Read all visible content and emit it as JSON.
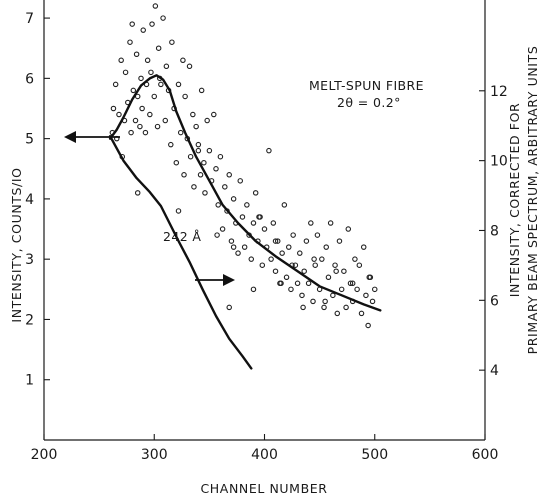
{
  "chart_data": {
    "type": "scatter",
    "title": "",
    "xlabel": "CHANNEL NUMBER",
    "ylabel": "INTENSITY, COUNTS/IO",
    "y2label_line1": "INTENSITY, CORRECTED FOR",
    "y2label_line2": "PRIMARY BEAM SPECTRUM, ARBITRARY UNITS",
    "xlim": [
      200,
      600
    ],
    "ylim": [
      0,
      7.3
    ],
    "y2lim": [
      2,
      14.6
    ],
    "x_ticks": [
      200,
      300,
      400,
      500,
      600
    ],
    "x_tick_labels": [
      "200",
      "300",
      "400",
      "500",
      "600"
    ],
    "y_ticks": [
      1,
      2,
      3,
      4,
      5,
      6,
      7
    ],
    "y_tick_labels": [
      "1",
      "2",
      "3",
      "4",
      "5",
      "6",
      "7"
    ],
    "y2_ticks": [
      4,
      6,
      8,
      10,
      12
    ],
    "y2_tick_labels": [
      "4",
      "6",
      "8",
      "10",
      "12"
    ],
    "grid": false,
    "legend": "none",
    "annotations": {
      "sample_line1": "MELT-SPUN FIBRE",
      "sample_line2": "2θ = 0.2°",
      "spacing_label": "242 Å"
    },
    "series": [
      {
        "kind": "scatter",
        "axis": "left",
        "x": [
          262,
          263,
          265,
          266,
          268,
          270,
          271,
          273,
          274,
          276,
          278,
          279,
          280,
          281,
          283,
          284,
          285,
          287,
          288,
          289,
          290,
          292,
          293,
          294,
          296,
          297,
          298,
          300,
          301,
          303,
          304,
          306,
          308,
          310,
          311,
          313,
          315,
          316,
          318,
          320,
          322,
          324,
          326,
          327,
          328,
          330,
          332,
          333,
          335,
          336,
          338,
          340,
          342,
          343,
          345,
          346,
          348,
          350,
          352,
          354,
          356,
          358,
          360,
          362,
          364,
          366,
          368,
          370,
          372,
          374,
          376,
          378,
          380,
          382,
          384,
          386,
          388,
          390,
          392,
          394,
          396,
          398,
          400,
          402,
          404,
          406,
          408,
          410,
          412,
          414,
          416,
          418,
          420,
          422,
          424,
          426,
          428,
          430,
          432,
          434,
          436,
          438,
          440,
          442,
          444,
          446,
          448,
          450,
          452,
          454,
          456,
          458,
          460,
          462,
          464,
          466,
          468,
          470,
          472,
          474,
          476,
          478,
          480,
          482,
          484,
          486,
          488,
          490,
          492,
          494,
          496,
          498,
          500,
          285,
          305,
          322,
          340,
          357,
          372,
          395,
          410,
          425,
          445,
          465,
          480,
          495,
          368,
          390,
          415,
          435,
          455
        ],
        "y": [
          5.1,
          5.5,
          5.9,
          5.0,
          5.4,
          6.3,
          4.7,
          5.3,
          6.1,
          5.6,
          6.6,
          5.1,
          6.9,
          5.8,
          5.3,
          6.4,
          5.7,
          5.2,
          6.0,
          5.5,
          6.8,
          5.1,
          5.9,
          6.3,
          5.4,
          6.1,
          6.9,
          5.7,
          7.2,
          5.2,
          6.5,
          5.9,
          7.0,
          5.3,
          6.2,
          5.8,
          4.9,
          6.6,
          5.5,
          4.6,
          5.9,
          5.1,
          6.3,
          4.4,
          5.7,
          5.0,
          6.2,
          4.7,
          5.4,
          4.2,
          5.2,
          4.9,
          4.4,
          5.8,
          4.6,
          4.1,
          5.3,
          4.8,
          4.3,
          5.4,
          4.5,
          3.9,
          4.7,
          3.5,
          4.2,
          3.8,
          4.4,
          3.3,
          4.0,
          3.6,
          3.1,
          4.3,
          3.7,
          3.2,
          3.9,
          3.4,
          3.0,
          3.6,
          4.1,
          3.3,
          3.7,
          2.9,
          3.5,
          3.2,
          4.8,
          3.0,
          3.6,
          2.8,
          3.3,
          2.6,
          3.1,
          3.9,
          2.7,
          3.2,
          2.5,
          3.4,
          2.9,
          2.6,
          3.1,
          2.4,
          2.8,
          3.3,
          2.6,
          3.6,
          2.3,
          2.9,
          3.4,
          2.5,
          3.0,
          2.2,
          3.2,
          2.7,
          3.6,
          2.4,
          2.9,
          2.1,
          3.3,
          2.5,
          2.8,
          2.2,
          3.5,
          2.6,
          2.3,
          3.0,
          2.5,
          2.9,
          2.1,
          3.2,
          2.4,
          1.9,
          2.7,
          2.3,
          2.5,
          4.1,
          6.0,
          3.8,
          4.8,
          3.4,
          3.2,
          3.7,
          3.3,
          2.9,
          3.0,
          2.8,
          2.6,
          2.7,
          2.2,
          2.5,
          2.6,
          2.2,
          2.3
        ]
      },
      {
        "kind": "line",
        "axis": "left",
        "name": "",
        "x": [
          260,
          266,
          272,
          280,
          288,
          296,
          302,
          308,
          314,
          320,
          328,
          338,
          350,
          362,
          376,
          392,
          410,
          430,
          450,
          470,
          490,
          505
        ],
        "y": [
          5.0,
          5.15,
          5.35,
          5.65,
          5.88,
          6.0,
          6.05,
          5.98,
          5.8,
          5.45,
          5.1,
          4.7,
          4.3,
          3.9,
          3.6,
          3.3,
          3.05,
          2.8,
          2.55,
          2.4,
          2.25,
          2.15
        ]
      },
      {
        "kind": "line",
        "axis": "right",
        "name": "",
        "x": [
          260,
          272,
          284,
          296,
          306,
          314,
          322,
          332,
          344,
          356,
          368,
          380,
          388
        ],
        "y": [
          10.7,
          10.0,
          9.5,
          9.1,
          8.7,
          8.2,
          7.7,
          7.1,
          6.3,
          5.55,
          4.9,
          4.4,
          4.05
        ]
      }
    ]
  }
}
